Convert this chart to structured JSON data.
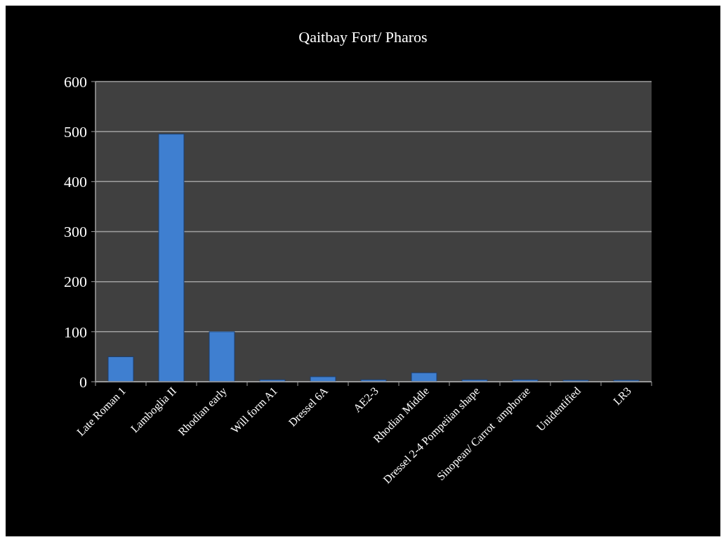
{
  "chart_data": {
    "type": "bar",
    "title": "Qaitbay Fort/ Pharos",
    "categories": [
      "Late Roman 1",
      "Lamboglia II",
      "Rhodian early",
      "Will form A1",
      "Dressel 6A",
      "AE2-3",
      "Rhodian Middle",
      "Dressel 2-4 Pompeiian shape",
      "Sinopean/ Carrot  amphorae",
      "Unidentified",
      "LR3"
    ],
    "values": [
      50,
      495,
      100,
      4,
      10,
      4,
      18,
      4,
      4,
      3,
      3
    ],
    "color": "#3f7fd0",
    "ylim": [
      0,
      600
    ],
    "yticks": [
      0,
      100,
      200,
      300,
      400,
      500,
      600
    ],
    "grid": "y"
  }
}
